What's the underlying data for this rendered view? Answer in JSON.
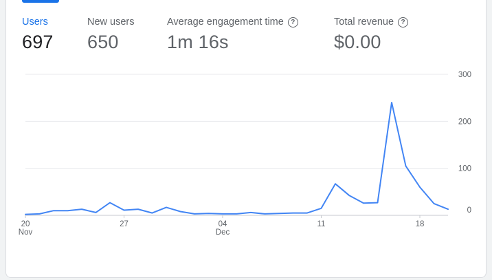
{
  "metrics": [
    {
      "label": "Users",
      "value": "697",
      "active": true
    },
    {
      "label": "New users",
      "value": "650",
      "active": false
    },
    {
      "label": "Average engagement time",
      "value": "1m 16s",
      "active": false,
      "help_icon": "help-circle-icon"
    },
    {
      "label": "Total revenue",
      "value": "$0.00",
      "active": false,
      "help_icon": "help-circle-icon"
    }
  ],
  "help_glyph": "?",
  "colors": {
    "accent": "#1a73e8",
    "line": "#4285f4",
    "grid": "#e8eaed"
  },
  "chart_data": {
    "type": "line",
    "title": "Users",
    "x": [
      "Nov 20",
      "Nov 21",
      "Nov 22",
      "Nov 23",
      "Nov 24",
      "Nov 25",
      "Nov 26",
      "Nov 27",
      "Nov 28",
      "Nov 29",
      "Nov 30",
      "Dec 01",
      "Dec 02",
      "Dec 03",
      "Dec 04",
      "Dec 05",
      "Dec 06",
      "Dec 07",
      "Dec 08",
      "Dec 09",
      "Dec 10",
      "Dec 11",
      "Dec 12",
      "Dec 13",
      "Dec 14",
      "Dec 15",
      "Dec 16",
      "Dec 17",
      "Dec 18",
      "Dec 19",
      "Dec 20"
    ],
    "series": [
      {
        "name": "Users",
        "values": [
          2,
          3,
          10,
          10,
          13,
          6,
          27,
          11,
          13,
          5,
          17,
          8,
          3,
          4,
          3,
          3,
          6,
          3,
          4,
          5,
          5,
          15,
          67,
          42,
          26,
          27,
          240,
          105,
          60,
          25,
          13
        ]
      }
    ],
    "x_ticks": [
      {
        "index": 0,
        "day": "20",
        "month": "Nov"
      },
      {
        "index": 7,
        "day": "27",
        "month": ""
      },
      {
        "index": 14,
        "day": "04",
        "month": "Dec"
      },
      {
        "index": 21,
        "day": "11",
        "month": ""
      },
      {
        "index": 28,
        "day": "18",
        "month": ""
      }
    ],
    "y_ticks": [
      0,
      100,
      200,
      300
    ],
    "ylim": [
      0,
      300
    ],
    "grid": true,
    "y_axis_side": "right"
  }
}
